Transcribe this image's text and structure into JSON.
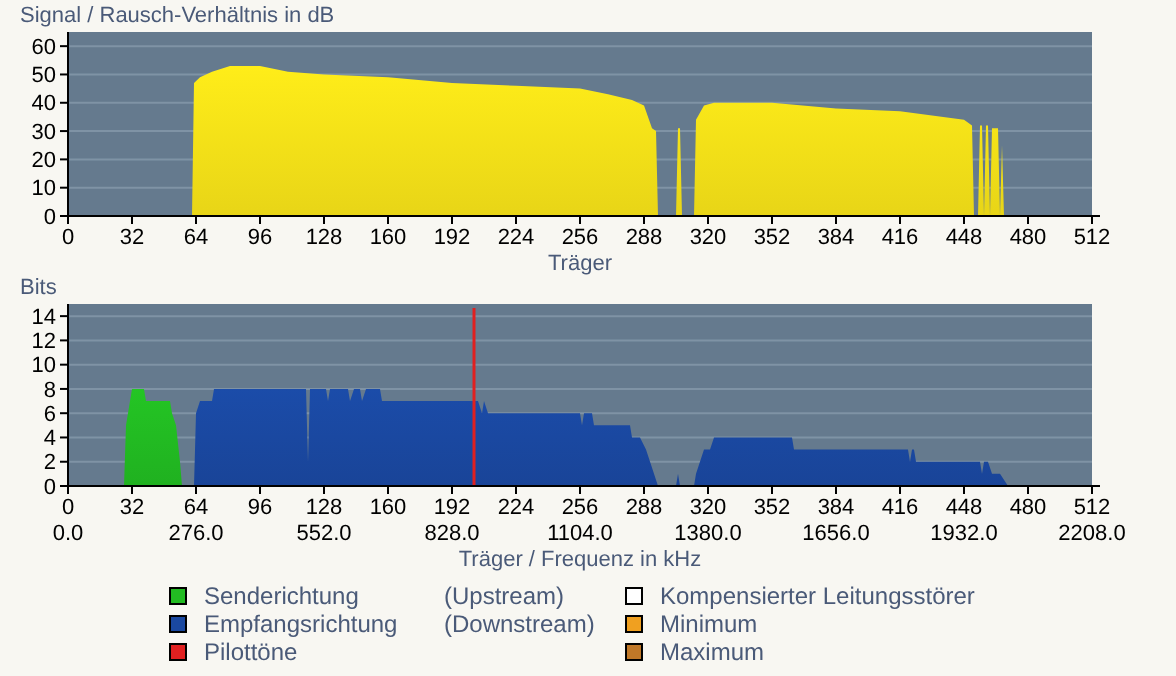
{
  "chart_data": [
    {
      "type": "area",
      "ylabel": "Signal / Rausch-Verhältnis in dB",
      "xlabel": "Träger",
      "xlim": [
        0,
        512
      ],
      "xticks": [
        0,
        32,
        64,
        96,
        128,
        160,
        192,
        224,
        256,
        288,
        320,
        352,
        384,
        416,
        448,
        480,
        512
      ],
      "ylim": [
        0,
        65
      ],
      "yticks": [
        0,
        10,
        20,
        30,
        40,
        50,
        60
      ],
      "grid": "y",
      "legend": false,
      "x": [
        0,
        62,
        63,
        66,
        72,
        81,
        96,
        110,
        128,
        160,
        192,
        224,
        256,
        270,
        282,
        288,
        292,
        294,
        295,
        304,
        305,
        306,
        307,
        313,
        314,
        318,
        323,
        352,
        384,
        416,
        448,
        452,
        453,
        455,
        456,
        457,
        458,
        459,
        460,
        461,
        462,
        465,
        466,
        467,
        468,
        512
      ],
      "series": [
        {
          "color": "#f5e118",
          "values": [
            0,
            0,
            47,
            49,
            51,
            53,
            53,
            51,
            50,
            49,
            47,
            46,
            45,
            43,
            41,
            39,
            31,
            30,
            0,
            0,
            31,
            31,
            0,
            0,
            34,
            39,
            40,
            40,
            38,
            37,
            34,
            32,
            0,
            0,
            32,
            32,
            0,
            32,
            32,
            0,
            31,
            31,
            0,
            25,
            0,
            0
          ]
        }
      ]
    },
    {
      "type": "area",
      "ylabel": "Bits",
      "xlabel": "Träger / Frequenz in kHz",
      "xlim": [
        0,
        512
      ],
      "xticks": [
        0,
        32,
        64,
        96,
        128,
        160,
        192,
        224,
        256,
        288,
        320,
        352,
        384,
        416,
        448,
        480,
        512
      ],
      "x2lim": [
        0,
        2208
      ],
      "x2ticks": [
        {
          "value": 0,
          "label": "0.0"
        },
        {
          "value": 276,
          "label": "276.0"
        },
        {
          "value": 552,
          "label": "552.0"
        },
        {
          "value": 828,
          "label": "828.0"
        },
        {
          "value": 1104,
          "label": "1104.0"
        },
        {
          "value": 1380,
          "label": "1380.0"
        },
        {
          "value": 1656,
          "label": "1656.0"
        },
        {
          "value": 1932,
          "label": "1932.0"
        },
        {
          "value": 2208,
          "label": "2208.0"
        }
      ],
      "ylim": [
        0,
        15
      ],
      "yticks": [
        0,
        2,
        4,
        6,
        8,
        10,
        12,
        14
      ],
      "grid": "y",
      "legend": "bottom",
      "series": [
        {
          "name": "Senderichtung (Upstream)",
          "color": "#22bb22",
          "x": [
            28,
            29,
            31,
            32,
            38,
            39,
            51,
            52,
            54,
            56,
            57
          ],
          "values": [
            0,
            5,
            7,
            8,
            8,
            7,
            7,
            6,
            5,
            2,
            0
          ]
        },
        {
          "name": "Empfangsrichtung (Downstream)",
          "color": "#1a48a0",
          "x": [
            63,
            64,
            66,
            72,
            73,
            119,
            120,
            121,
            129,
            130,
            131,
            140,
            141,
            143,
            146,
            147,
            149,
            156,
            157,
            205,
            207,
            208,
            210,
            256,
            257,
            258,
            262,
            263,
            281,
            282,
            286,
            289,
            293,
            295,
            304,
            305,
            306,
            313,
            314,
            318,
            321,
            323,
            362,
            363,
            420,
            421,
            422,
            423,
            424,
            456,
            457,
            458,
            460,
            462,
            466,
            470,
            512
          ],
          "values": [
            0,
            6,
            7,
            7,
            8,
            8,
            2,
            8,
            8,
            7,
            8,
            8,
            7,
            8,
            8,
            7,
            8,
            8,
            7,
            7,
            6,
            7,
            6,
            6,
            5,
            6,
            6,
            5,
            5,
            4,
            4,
            3,
            1,
            0,
            0,
            1,
            0,
            0,
            1,
            3,
            3,
            4,
            4,
            3,
            3,
            2,
            3,
            3,
            2,
            2,
            1,
            2,
            2,
            1,
            1,
            0,
            0
          ]
        },
        {
          "name": "Kompensierter Leitungsstörer",
          "color": "#ffffff"
        },
        {
          "name": "Minimum",
          "color": "#f0a020"
        },
        {
          "name": "Maximum",
          "color": "#c07828"
        }
      ],
      "ref_lines": [
        {
          "axis": "x",
          "value": 203,
          "label": "Pilottöne",
          "color": "#e02020"
        }
      ]
    }
  ]
}
